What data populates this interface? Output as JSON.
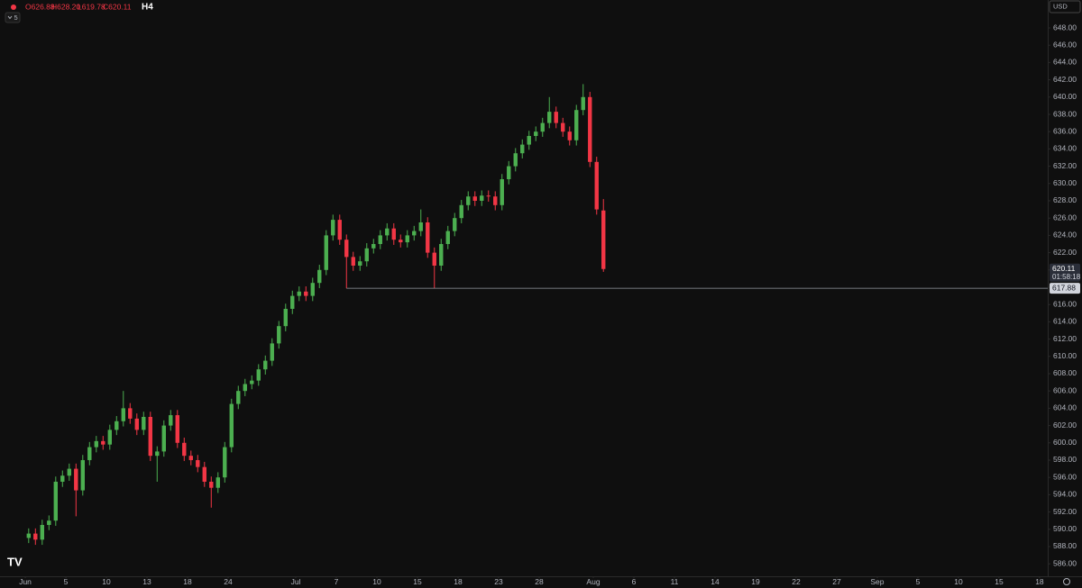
{
  "chart_data": {
    "type": "candlestick",
    "ohlc_labels": [
      "O626.88",
      "H628.20",
      "L619.78",
      "C620.11"
    ],
    "interval": "H4",
    "indicators": 5,
    "currency": "USD",
    "up_color": "#4caf50",
    "down_color": "#f23645",
    "grid": false,
    "x": [
      0.25,
      0.75,
      1.25,
      1.75,
      2.25,
      2.75,
      3.25,
      3.75,
      4.25,
      4.75,
      5.25,
      5.75,
      6.25,
      6.75,
      7.25,
      7.75,
      8.25,
      8.75,
      9.25,
      9.75,
      10.25,
      10.75,
      11.25,
      11.75,
      12.25,
      12.75,
      13.25,
      13.75,
      14.25,
      14.75,
      15.25,
      15.75,
      16.25,
      16.75,
      17.25,
      17.75,
      18.25,
      18.75,
      19.25,
      19.75,
      20.25,
      20.75,
      21.25,
      21.75,
      22.25,
      22.75,
      23.25,
      23.75,
      24.25,
      24.75,
      25.25,
      25.75,
      26.25,
      26.75,
      27.25,
      27.75,
      28.25,
      28.75,
      29.25,
      29.75,
      30.25,
      30.75,
      31.25,
      31.75,
      32.25,
      32.75,
      33.25,
      33.75,
      34.25,
      34.75,
      35.25,
      35.75,
      36.25,
      36.75,
      37.25,
      37.75,
      38.25,
      38.75,
      39.25,
      39.75,
      40.25,
      40.75,
      41.25,
      41.75,
      42.25,
      42.75
    ],
    "open": [
      589.0,
      589.5,
      588.8,
      590.5,
      591.0,
      595.5,
      596.2,
      597.0,
      594.5,
      598.0,
      599.5,
      600.2,
      599.8,
      601.5,
      602.5,
      604.0,
      602.8,
      601.5,
      603.0,
      598.5,
      599.0,
      602.0,
      603.2,
      600.0,
      598.5,
      598.0,
      597.2,
      595.5,
      594.8,
      596.0,
      599.5,
      604.5,
      606.0,
      606.8,
      607.2,
      608.5,
      609.5,
      611.5,
      613.5,
      615.5,
      617.0,
      617.5,
      617.0,
      618.5,
      620.0,
      624.0,
      625.8,
      623.5,
      621.5,
      620.5,
      621.0,
      622.5,
      623.0,
      624.0,
      624.8,
      623.5,
      623.2,
      624.0,
      624.5,
      625.5,
      622.0,
      620.5,
      623.0,
      624.5,
      626.0,
      627.5,
      628.5,
      628.0,
      628.6,
      628.5,
      627.5,
      630.5,
      632.0,
      633.5,
      634.5,
      635.5,
      636.0,
      637.0,
      638.3,
      637.0,
      636.0,
      635.0,
      638.5,
      640.0,
      632.5,
      626.88
    ],
    "high": [
      590.1,
      590.1,
      591.1,
      591.6,
      596.1,
      596.8,
      597.6,
      597.6,
      598.6,
      600.1,
      600.8,
      600.8,
      602.1,
      603.1,
      606.0,
      604.6,
      603.4,
      603.6,
      603.6,
      599.6,
      602.6,
      603.8,
      603.8,
      600.6,
      599.1,
      598.6,
      597.8,
      596.1,
      596.6,
      600.1,
      605.1,
      606.6,
      607.4,
      607.8,
      609.1,
      610.1,
      612.1,
      614.1,
      616.1,
      617.6,
      618.1,
      618.1,
      619.1,
      620.6,
      624.6,
      626.4,
      626.4,
      624.1,
      622.1,
      621.6,
      623.1,
      623.6,
      624.6,
      625.4,
      625.4,
      624.1,
      624.6,
      625.1,
      627.0,
      626.1,
      622.6,
      623.6,
      625.1,
      626.6,
      628.1,
      629.1,
      629.1,
      629.2,
      629.2,
      629.1,
      631.1,
      632.6,
      634.1,
      635.1,
      636.1,
      636.6,
      637.6,
      640.0,
      638.9,
      637.6,
      636.6,
      639.1,
      641.5,
      640.6,
      633.1,
      628.2
    ],
    "low": [
      588.4,
      588.2,
      588.2,
      589.9,
      590.4,
      594.9,
      595.6,
      591.5,
      593.9,
      597.4,
      598.9,
      599.2,
      599.2,
      600.9,
      601.9,
      602.2,
      600.9,
      600.9,
      597.9,
      595.5,
      598.4,
      601.4,
      599.4,
      597.9,
      597.4,
      596.6,
      594.9,
      592.5,
      594.2,
      595.4,
      598.9,
      603.9,
      605.4,
      606.2,
      606.6,
      607.9,
      608.9,
      610.9,
      612.9,
      614.9,
      616.4,
      616.4,
      616.4,
      617.9,
      619.4,
      623.4,
      622.9,
      617.88,
      619.9,
      619.9,
      620.4,
      621.9,
      622.4,
      623.4,
      622.9,
      622.6,
      622.6,
      623.4,
      623.9,
      621.4,
      617.9,
      619.9,
      622.4,
      623.9,
      625.4,
      626.9,
      627.4,
      627.4,
      627.9,
      626.9,
      626.9,
      629.9,
      631.4,
      632.9,
      633.9,
      634.9,
      635.4,
      636.4,
      636.4,
      635.4,
      634.4,
      634.4,
      637.9,
      631.9,
      626.4,
      619.78
    ],
    "close": [
      589.5,
      588.8,
      590.5,
      591.0,
      595.5,
      596.2,
      597.0,
      594.5,
      598.0,
      599.5,
      600.2,
      599.8,
      601.5,
      602.5,
      604.0,
      602.8,
      601.5,
      603.0,
      598.5,
      599.0,
      602.0,
      603.2,
      600.0,
      598.5,
      598.0,
      597.2,
      595.5,
      594.8,
      596.0,
      599.5,
      604.5,
      606.0,
      606.8,
      607.2,
      608.5,
      609.5,
      611.5,
      613.5,
      615.5,
      617.0,
      617.5,
      617.0,
      618.5,
      620.0,
      624.0,
      625.8,
      623.5,
      621.5,
      620.5,
      621.0,
      622.5,
      623.0,
      624.0,
      624.8,
      623.5,
      623.2,
      624.0,
      624.5,
      625.5,
      622.0,
      620.5,
      623.0,
      624.5,
      626.0,
      627.5,
      628.5,
      628.0,
      628.6,
      628.5,
      627.5,
      630.5,
      632.0,
      633.5,
      634.5,
      635.5,
      636.0,
      637.0,
      638.3,
      637.0,
      636.0,
      635.0,
      638.5,
      640.0,
      632.5,
      627.0,
      620.11
    ],
    "last_price": {
      "value": 620.11,
      "label": "620.11"
    },
    "countdown": "01:58:18",
    "price_line": {
      "value": 617.88,
      "label": "617.88",
      "start_x": 23.75
    },
    "xlim": [
      -1.87,
      75.47
    ],
    "xticks": [
      {
        "value": 0,
        "label": "Jun"
      },
      {
        "value": 3,
        "label": "5"
      },
      {
        "value": 6,
        "label": "10"
      },
      {
        "value": 9,
        "label": "13"
      },
      {
        "value": 12,
        "label": "18"
      },
      {
        "value": 15,
        "label": "24"
      },
      {
        "value": 20,
        "label": "Jul"
      },
      {
        "value": 23,
        "label": "7"
      },
      {
        "value": 26,
        "label": "10"
      },
      {
        "value": 29,
        "label": "15"
      },
      {
        "value": 32,
        "label": "18"
      },
      {
        "value": 35,
        "label": "23"
      },
      {
        "value": 38,
        "label": "28"
      },
      {
        "value": 42,
        "label": "Aug"
      },
      {
        "value": 45,
        "label": "6"
      },
      {
        "value": 48,
        "label": "11"
      },
      {
        "value": 51,
        "label": "14"
      },
      {
        "value": 54,
        "label": "19"
      },
      {
        "value": 57,
        "label": "22"
      },
      {
        "value": 60,
        "label": "27"
      },
      {
        "value": 63,
        "label": "Sep"
      },
      {
        "value": 66,
        "label": "5"
      },
      {
        "value": 69,
        "label": "10"
      },
      {
        "value": 72,
        "label": "15"
      },
      {
        "value": 75,
        "label": "18"
      }
    ],
    "ylim": [
      584.56,
      651.23
    ],
    "yticks": [
      {
        "value": 586,
        "label": "586.00"
      },
      {
        "value": 588,
        "label": "588.00"
      },
      {
        "value": 590,
        "label": "590.00"
      },
      {
        "value": 592,
        "label": "592.00"
      },
      {
        "value": 594,
        "label": "594.00"
      },
      {
        "value": 596,
        "label": "596.00"
      },
      {
        "value": 598,
        "label": "598.00"
      },
      {
        "value": 600,
        "label": "600.00"
      },
      {
        "value": 602,
        "label": "602.00"
      },
      {
        "value": 604,
        "label": "604.00"
      },
      {
        "value": 606,
        "label": "606.00"
      },
      {
        "value": 608,
        "label": "608.00"
      },
      {
        "value": 610,
        "label": "610.00"
      },
      {
        "value": 612,
        "label": "612.00"
      },
      {
        "value": 614,
        "label": "614.00"
      },
      {
        "value": 616,
        "label": "616.00"
      },
      {
        "value": 618,
        "label": "618.00"
      },
      {
        "value": 620,
        "label": "620.00"
      },
      {
        "value": 622,
        "label": "622.00"
      },
      {
        "value": 624,
        "label": "624.00"
      },
      {
        "value": 626,
        "label": "626.00"
      },
      {
        "value": 628,
        "label": "628.00"
      },
      {
        "value": 630,
        "label": "630.00"
      },
      {
        "value": 632,
        "label": "632.00"
      },
      {
        "value": 634,
        "label": "634.00"
      },
      {
        "value": 636,
        "label": "636.00"
      },
      {
        "value": 638,
        "label": "638.00"
      },
      {
        "value": 640,
        "label": "640.00"
      },
      {
        "value": 642,
        "label": "642.00"
      },
      {
        "value": 644,
        "label": "644.00"
      },
      {
        "value": 646,
        "label": "646.00"
      },
      {
        "value": 648,
        "label": "648.00"
      }
    ]
  }
}
